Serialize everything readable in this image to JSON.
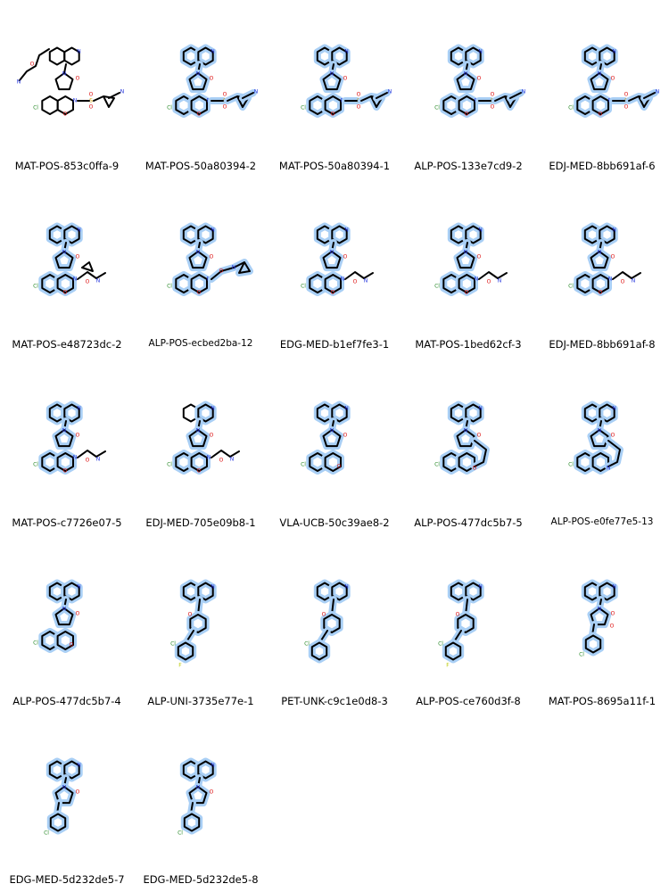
{
  "colors": {
    "bond": "#000000",
    "highlight": "#a9cff5",
    "nitrogen": "#2233dd",
    "oxygen": "#dd1111",
    "chlorine": "#2a8a2a",
    "fluorine": "#b8c800",
    "sulfur": "#d4a000"
  },
  "molecules": [
    {
      "id": "MAT-POS-853c0ffa-9",
      "highlighted": false,
      "variant": "sulfonamide-ether"
    },
    {
      "id": "MAT-POS-50a80394-2",
      "highlighted": true,
      "variant": "sulfonamide"
    },
    {
      "id": "MAT-POS-50a80394-1",
      "highlighted": true,
      "variant": "sulfonamide"
    },
    {
      "id": "ALP-POS-133e7cd9-2",
      "highlighted": true,
      "variant": "sulfonamide"
    },
    {
      "id": "EDJ-MED-8bb691af-6",
      "highlighted": true,
      "variant": "sulfonamide"
    },
    {
      "id": "MAT-POS-e48723dc-2",
      "highlighted": true,
      "variant": "amide-cyclopropyl"
    },
    {
      "id": "ALP-POS-ecbed2ba-12",
      "highlighted": true,
      "variant": "amine-cyclopropyl"
    },
    {
      "id": "EDG-MED-b1ef7fe3-1",
      "highlighted": true,
      "variant": "amide"
    },
    {
      "id": "MAT-POS-1bed62cf-3",
      "highlighted": true,
      "variant": "amide"
    },
    {
      "id": "EDJ-MED-8bb691af-8",
      "highlighted": true,
      "variant": "amide"
    },
    {
      "id": "MAT-POS-c7726e07-5",
      "highlighted": true,
      "variant": "amide"
    },
    {
      "id": "EDJ-MED-705e09b8-1",
      "highlighted": true,
      "variant": "amide-saturated"
    },
    {
      "id": "VLA-UCB-50c39ae8-2",
      "highlighted": true,
      "variant": "lactone"
    },
    {
      "id": "ALP-POS-477dc5b7-5",
      "highlighted": true,
      "variant": "bridged"
    },
    {
      "id": "ALP-POS-e0fe77e5-13",
      "highlighted": true,
      "variant": "bridged"
    },
    {
      "id": "ALP-POS-477dc5b7-4",
      "highlighted": true,
      "variant": "chromane"
    },
    {
      "id": "ALP-UNI-3735e77e-1",
      "highlighted": true,
      "variant": "piperidinone"
    },
    {
      "id": "PET-UNK-c9c1e0d8-3",
      "highlighted": true,
      "variant": "piperidinone"
    },
    {
      "id": "ALP-POS-ce760d3f-8",
      "highlighted": true,
      "variant": "piperidinone"
    },
    {
      "id": "MAT-POS-8695a11f-1",
      "highlighted": true,
      "variant": "lactam-ketone"
    },
    {
      "id": "EDG-MED-5d232de5-7",
      "highlighted": true,
      "variant": "lactam"
    },
    {
      "id": "EDG-MED-5d232de5-8",
      "highlighted": true,
      "variant": "lactam"
    }
  ]
}
